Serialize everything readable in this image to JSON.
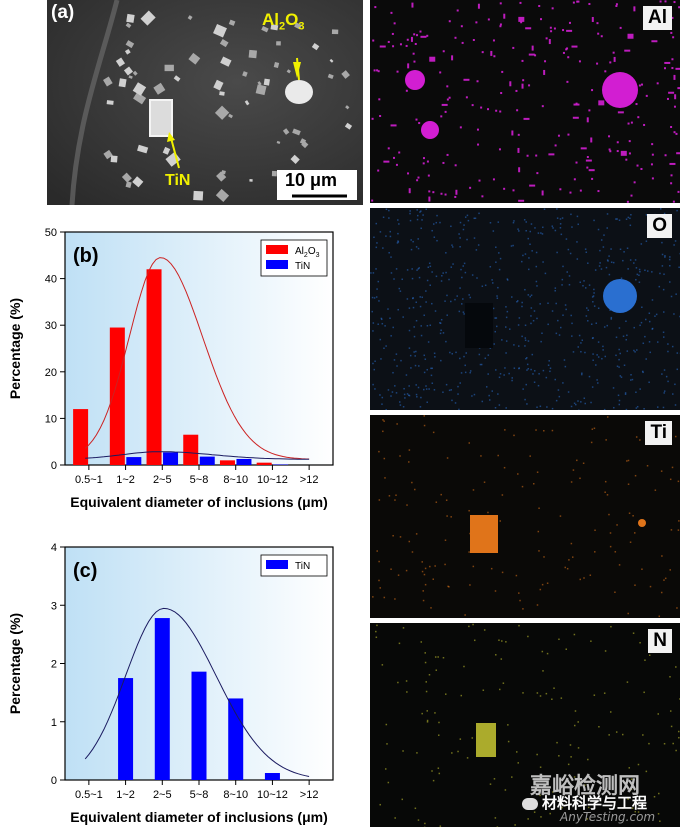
{
  "panel_a": {
    "label": "(a)",
    "labels": {
      "al2o3_main": "Al",
      "al2o3_sub1": "2",
      "al2o3_o": "O",
      "al2o3_sub2": "3",
      "tin": "TiN"
    },
    "scale_bar": "10 μm"
  },
  "maps": [
    {
      "element": "Al",
      "color": "#d21ed2"
    },
    {
      "element": "O",
      "color": "#2a6fd0"
    },
    {
      "element": "Ti",
      "color": "#e0741a"
    },
    {
      "element": "N",
      "color": "#c8c832"
    }
  ],
  "watermark": {
    "line1": "嘉峪检测网",
    "line2": "材料科学与工程",
    "line3": "AnyTesting.com"
  },
  "chart_data": [
    {
      "type": "bar",
      "panel_label": "(b)",
      "categories": [
        "0.5~1",
        "1~2",
        "2~5",
        "5~8",
        "8~10",
        "10~12",
        ">12"
      ],
      "series": [
        {
          "name": "Al2O3",
          "legend_main": "Al",
          "legend_sub1": "2",
          "legend_o": "O",
          "legend_sub2": "3",
          "color": "#ff0000",
          "values": [
            12,
            29.5,
            42,
            6.5,
            1,
            0.5,
            0
          ]
        },
        {
          "name": "TiN",
          "legend_main": "TiN",
          "color": "#0000ff",
          "values": [
            0,
            1.7,
            2.7,
            1.8,
            1.3,
            0.1,
            0
          ]
        }
      ],
      "xlabel": "Equivalent diameter of inclusions (μm)",
      "ylabel": "Percentage (%)",
      "ylim": [
        0,
        50
      ],
      "yticks": [
        0,
        10,
        20,
        30,
        40,
        50
      ],
      "fit_curves": true
    },
    {
      "type": "bar",
      "panel_label": "(c)",
      "categories": [
        "0.5~1",
        "1~2",
        "2~5",
        "5~8",
        "8~10",
        "10~12",
        ">12"
      ],
      "series": [
        {
          "name": "TiN",
          "legend_main": "TiN",
          "color": "#0000ff",
          "values": [
            0,
            1.75,
            2.78,
            1.86,
            1.4,
            0.12,
            0
          ]
        }
      ],
      "xlabel": "Equivalent diameter of inclusions (μm)",
      "ylabel": "Percentage (%)",
      "ylim": [
        0,
        4
      ],
      "yticks": [
        0,
        1,
        2,
        3,
        4
      ],
      "fit_curves": true
    }
  ]
}
